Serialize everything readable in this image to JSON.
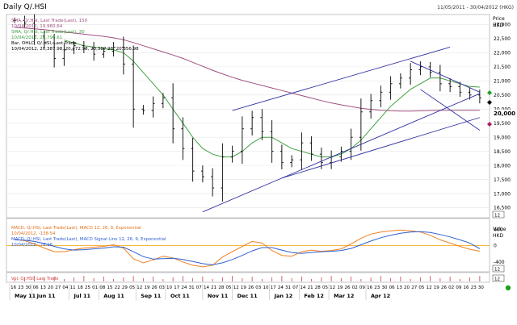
{
  "header": {
    "title": "Daily Q/.HSI",
    "date_range": "11/05/2011 - 30/04/2012 (HKG)"
  },
  "legend": {
    "line1": "SMA, Q/.HSI, Last Trade(Last), 150",
    "line2": "10/04/2012, 19,960.64",
    "line3": "SMA, Q/.HSI, Last Trade(Last), 30",
    "line4": "10/04/2012, 20,796.61",
    "line5": "Bar, OHLC, Q/.HSI, Last Trade",
    "line6": "10/04/2012, 20,387.98, 20,472.98, 20,387.98, 20,356.98"
  },
  "price_axis": {
    "label": "Price",
    "unit": "HKD",
    "ticks": [
      "23,000",
      "22,500",
      "22,000",
      "21,500",
      "21,000",
      "20,500",
      "20,000",
      "19,500",
      "19,000",
      "18,500",
      "18,000",
      "17,500",
      "17,000",
      "16,500"
    ],
    "current": "20,000",
    "scale_label": "12"
  },
  "macd_panel": {
    "legend1": "MACD, Q/.HSI, Last Trade(Last), MACD 12, 26, 9, Exponential",
    "legend2": "10/04/2012, -138.54",
    "legend3": "MACD, Q/.HSI, Last Trade(Last), MACD Signal Line 12, 26, 9, Exponential",
    "legend4": "10/04/2012, -76.16",
    "axis_label": "Value",
    "unit": "HKD",
    "ticks": [
      "400",
      "0",
      "-400"
    ],
    "scale_label": "12"
  },
  "volume_panel": {
    "legend": "Vol, Q/.HSI, Last Trade",
    "scale_label": "12"
  },
  "x_axis": {
    "day_labels": [
      "16",
      "23",
      "30",
      "06",
      "13",
      "20",
      "27",
      "04",
      "11",
      "18",
      "25",
      "01",
      "08",
      "15",
      "22",
      "29",
      "05",
      "12",
      "19",
      "26",
      "03",
      "10",
      "17",
      "24",
      "31",
      "07",
      "14",
      "21",
      "28",
      "05",
      "12",
      "19",
      "26",
      "03",
      "10",
      "17",
      "24",
      "31",
      "07",
      "14",
      "21",
      "28",
      "05",
      "12",
      "19",
      "26",
      "02",
      "09",
      "16",
      "23",
      "30",
      "06",
      "13",
      "20",
      "27",
      "05",
      "12",
      "19",
      "26",
      "02",
      "09",
      "16",
      "23",
      "30"
    ],
    "month_labels": [
      "May 11",
      "Jun 11",
      "Jul 11",
      "Aug 11",
      "Sep 11",
      "Oct 11",
      "Nov 11",
      "Dec 11",
      "Jan 12",
      "Feb 12",
      "Mar 12",
      "Apr 12"
    ]
  },
  "colors": {
    "sma150": "#a05080",
    "sma30": "#40a040",
    "bars": "#000000",
    "trendlines": "#3030a0",
    "macd": "#f08020",
    "signal": "#3060d0",
    "zero_line": "#f0a000",
    "volume": "#d04040",
    "status": "#20a020"
  },
  "chart_data": {
    "type": "line",
    "title": "Daily Q/.HSI",
    "ylabel": "Price",
    "ylim": [
      16200,
      23300
    ],
    "weeks": [
      "16 May 11",
      "23 May",
      "30 May",
      "06 Jun",
      "13 Jun",
      "20 Jun",
      "27 Jun",
      "04 Jul",
      "11 Jul",
      "18 Jul",
      "25 Jul",
      "01 Aug",
      "08 Aug",
      "15 Aug",
      "22 Aug",
      "29 Aug",
      "05 Sep",
      "12 Sep",
      "19 Sep",
      "26 Sep",
      "03 Oct",
      "10 Oct",
      "17 Oct",
      "24 Oct",
      "31 Oct",
      "07 Nov",
      "14 Nov",
      "21 Nov",
      "28 Nov",
      "05 Dec",
      "12 Dec",
      "19 Dec",
      "26 Dec",
      "02 Jan",
      "09 Jan",
      "16 Jan",
      "23 Jan",
      "30 Jan",
      "06 Feb",
      "13 Feb",
      "20 Feb",
      "27 Feb",
      "05 Mar",
      "12 Mar",
      "19 Mar",
      "26 Mar",
      "02 Apr",
      "09 Apr"
    ],
    "close": [
      23150,
      23050,
      22600,
      22350,
      21800,
      22100,
      22250,
      22150,
      21950,
      22050,
      22200,
      21600,
      20000,
      19950,
      20200,
      20400,
      19300,
      18600,
      17800,
      17600,
      17200,
      18300,
      18500,
      19300,
      19700,
      19200,
      18500,
      18100,
      18200,
      18800,
      18400,
      18100,
      18300,
      18500,
      19000,
      19900,
      20300,
      20600,
      20900,
      21100,
      21400,
      21500,
      21300,
      20900,
      20800,
      20600,
      20500,
      20400
    ],
    "series": [
      {
        "name": "SMA 150",
        "values": [
          22900,
          22880,
          22850,
          22820,
          22780,
          22740,
          22700,
          22660,
          22620,
          22580,
          22530,
          22460,
          22360,
          22250,
          22140,
          22030,
          21920,
          21800,
          21660,
          21520,
          21380,
          21250,
          21130,
          21020,
          20930,
          20840,
          20750,
          20660,
          20570,
          20480,
          20390,
          20300,
          20220,
          20150,
          20090,
          20030,
          19990,
          19960,
          19940,
          19930,
          19930,
          19940,
          19950,
          19955,
          19960,
          19960,
          19960,
          19960
        ]
      },
      {
        "name": "SMA 30",
        "values": [
          null,
          null,
          null,
          null,
          null,
          22450,
          22350,
          22250,
          22200,
          22150,
          22100,
          22000,
          21700,
          21300,
          20900,
          20500,
          20000,
          19500,
          19000,
          18600,
          18400,
          18300,
          18300,
          18500,
          18800,
          19000,
          19000,
          18800,
          18600,
          18500,
          18400,
          18300,
          18300,
          18400,
          18600,
          18900,
          19300,
          19700,
          20100,
          20400,
          20700,
          20900,
          21100,
          21100,
          21000,
          20900,
          20800,
          20780
        ]
      }
    ],
    "macd": {
      "ylim": [
        -600,
        600
      ],
      "macd": [
        150,
        120,
        40,
        -60,
        -150,
        -150,
        -100,
        -60,
        -40,
        -20,
        20,
        -60,
        -320,
        -420,
        -350,
        -260,
        -300,
        -400,
        -480,
        -520,
        -480,
        -280,
        -150,
        -20,
        100,
        60,
        -120,
        -240,
        -260,
        -150,
        -110,
        -140,
        -120,
        -80,
        40,
        180,
        280,
        330,
        360,
        380,
        360,
        330,
        250,
        140,
        60,
        -20,
        -90,
        -138.54
      ],
      "signal": [
        140,
        130,
        100,
        50,
        -20,
        -80,
        -110,
        -100,
        -80,
        -60,
        -30,
        -40,
        -150,
        -270,
        -330,
        -320,
        -310,
        -340,
        -390,
        -440,
        -470,
        -420,
        -340,
        -240,
        -130,
        -50,
        -50,
        -110,
        -170,
        -190,
        -170,
        -150,
        -140,
        -120,
        -70,
        20,
        110,
        190,
        250,
        300,
        330,
        340,
        320,
        270,
        210,
        140,
        60,
        -76.16
      ]
    }
  },
  "status": {
    "indicator": "connected"
  }
}
